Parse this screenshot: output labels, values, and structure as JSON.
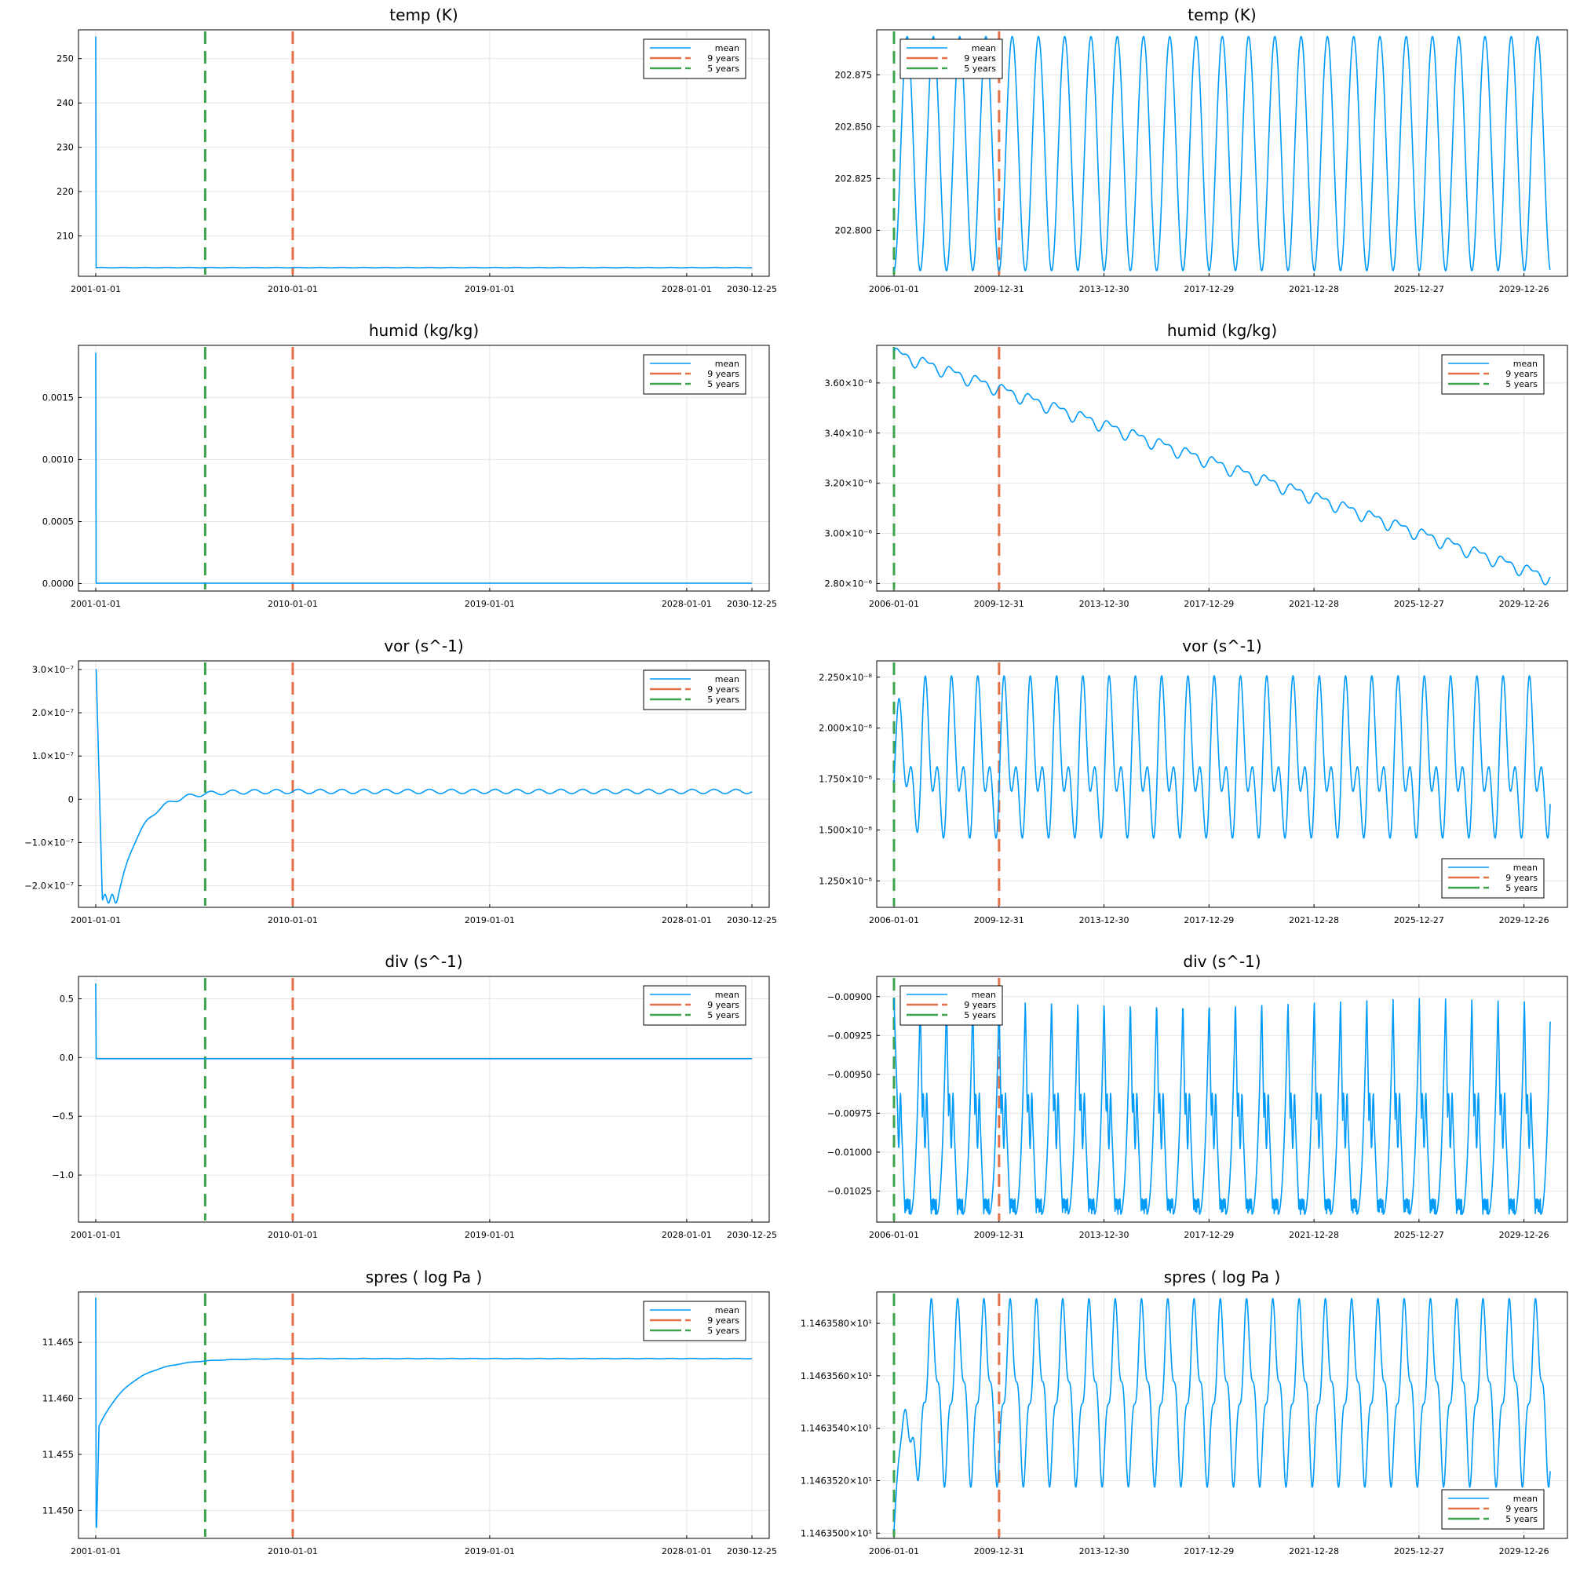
{
  "figure": {
    "legend_entries": [
      "mean",
      "9 years",
      "5 years"
    ],
    "colors": {
      "mean": "#009af9",
      "nine_years": "#e26f46",
      "five_years": "#3da44d",
      "grid": "#e5e5e5",
      "axis": "#000000"
    }
  },
  "chart_data": [
    {
      "type": "line",
      "title": "temp (K)",
      "panel": "full-left",
      "legend_position": "top-right",
      "x_ticks": [
        "2001-01-01",
        "2010-01-01",
        "2019-01-01",
        "2028-01-01",
        "2030-12-25"
      ],
      "x_range": [
        "2001-01-01",
        "2030-12-25"
      ],
      "y_ticks": [
        "250",
        "240",
        "230",
        "220",
        "210"
      ],
      "y_tick_values": [
        250,
        240,
        230,
        220,
        210
      ],
      "ylim": [
        200.9,
        256.5
      ],
      "series": [
        {
          "name": "mean",
          "shape": "spike",
          "start_value": 255.0,
          "level": 202.85,
          "amplitude": 0.05,
          "period_years": 1
        }
      ],
      "vlines": [
        {
          "name": "9 years",
          "x": "2010-01-01"
        },
        {
          "name": "5 years",
          "x": "2006-01-01"
        }
      ]
    },
    {
      "type": "line",
      "title": "temp (K)",
      "panel": "tail-right",
      "legend_position": "top-left",
      "x_ticks": [
        "2006-01-01",
        "2009-12-31",
        "2013-12-30",
        "2017-12-29",
        "2021-12-28",
        "2025-12-27",
        "2029-12-26"
      ],
      "x_range": [
        "2006-01-01",
        "2030-12-25"
      ],
      "y_ticks": [
        "202.875",
        "202.850",
        "202.825",
        "202.800"
      ],
      "y_tick_values": [
        202.875,
        202.85,
        202.825,
        202.8
      ],
      "ylim": [
        202.7778,
        202.8967
      ],
      "series": [
        {
          "name": "mean",
          "shape": "sine",
          "min": 202.7805,
          "max": 202.8935,
          "period_years": 1,
          "start_phase": "min",
          "end": 202.782
        }
      ],
      "vlines": [
        {
          "name": "9 years",
          "x": "2010-01-01"
        },
        {
          "name": "5 years",
          "x": "2006-01-01"
        }
      ]
    },
    {
      "type": "line",
      "title": "humid (kg/kg)",
      "panel": "full-left",
      "legend_position": "top-right",
      "x_ticks": [
        "2001-01-01",
        "2010-01-01",
        "2019-01-01",
        "2028-01-01",
        "2030-12-25"
      ],
      "x_range": [
        "2001-01-01",
        "2030-12-25"
      ],
      "y_ticks": [
        "0.0015",
        "0.0010",
        "0.0005",
        "0.0000"
      ],
      "y_tick_values": [
        0.0015,
        0.001,
        0.0005,
        0
      ],
      "ylim": [
        -6e-05,
        0.00192
      ],
      "series": [
        {
          "name": "mean",
          "shape": "spike",
          "start_value": 0.00186,
          "level": 3.2e-06,
          "amplitude": 0,
          "period_years": 1
        }
      ],
      "vlines": [
        {
          "name": "9 years",
          "x": "2010-01-01"
        },
        {
          "name": "5 years",
          "x": "2006-01-01"
        }
      ]
    },
    {
      "type": "line",
      "title": "humid (kg/kg)",
      "panel": "tail-right",
      "legend_position": "top-right",
      "x_ticks": [
        "2006-01-01",
        "2009-12-31",
        "2013-12-30",
        "2017-12-29",
        "2021-12-28",
        "2025-12-27",
        "2029-12-26"
      ],
      "x_range": [
        "2006-01-01",
        "2030-12-25"
      ],
      "y_ticks": [
        "3.60×10⁻⁶",
        "3.40×10⁻⁶",
        "3.20×10⁻⁶",
        "3.00×10⁻⁶",
        "2.80×10⁻⁶"
      ],
      "y_tick_values": [
        3.6e-06,
        3.4e-06,
        3.2e-06,
        3e-06,
        2.8e-06
      ],
      "ylim": [
        2.77e-06,
        3.75e-06
      ],
      "series": [
        {
          "name": "mean",
          "shape": "trend",
          "start": 3.72e-06,
          "end": 2.82e-06,
          "amplitude": 2e-08,
          "period_years": 1
        }
      ],
      "vlines": [
        {
          "name": "9 years",
          "x": "2010-01-01"
        },
        {
          "name": "5 years",
          "x": "2006-01-01"
        }
      ]
    },
    {
      "type": "line",
      "title": "vor (s^-1)",
      "panel": "full-left",
      "legend_position": "top-right",
      "x_ticks": [
        "2001-01-01",
        "2010-01-01",
        "2019-01-01",
        "2028-01-01",
        "2030-12-25"
      ],
      "x_range": [
        "2001-01-01",
        "2030-12-25"
      ],
      "y_ticks": [
        "3.0×10⁻⁷",
        "2.0×10⁻⁷",
        "1.0×10⁻⁷",
        "0",
        "−1.0×10⁻⁷",
        "−2.0×10⁻⁷"
      ],
      "y_tick_values": [
        3e-07,
        2e-07,
        1e-07,
        0,
        -1e-07,
        -2e-07
      ],
      "ylim": [
        -2.5e-07,
        3.2e-07
      ],
      "series": [
        {
          "name": "mean",
          "shape": "recovery",
          "start_value": 3e-07,
          "trough": -2.3e-07,
          "level": 1.8e-08,
          "amplitude": 5e-09,
          "period_years": 1
        }
      ],
      "vlines": [
        {
          "name": "9 years",
          "x": "2010-01-01"
        },
        {
          "name": "5 years",
          "x": "2006-01-01"
        }
      ]
    },
    {
      "type": "line",
      "title": "vor (s^-1)",
      "panel": "tail-right",
      "legend_position": "bottom-right",
      "x_ticks": [
        "2006-01-01",
        "2009-12-31",
        "2013-12-30",
        "2017-12-29",
        "2021-12-28",
        "2025-12-27",
        "2029-12-26"
      ],
      "x_range": [
        "2006-01-01",
        "2030-12-25"
      ],
      "y_ticks": [
        "2.250×10⁻⁸",
        "2.000×10⁻⁸",
        "1.750×10⁻⁸",
        "1.500×10⁻⁸",
        "1.250×10⁻⁸"
      ],
      "y_tick_values": [
        2.25e-08,
        2e-08,
        1.75e-08,
        1.5e-08,
        1.25e-08
      ],
      "ylim": [
        1.12e-08,
        2.33e-08
      ],
      "series": [
        {
          "name": "mean",
          "shape": "double-cycle",
          "min": 1.35e-08,
          "max": 2.28e-08,
          "mid": 1.85e-08,
          "period_years": 1
        }
      ],
      "vlines": [
        {
          "name": "9 years",
          "x": "2010-01-01"
        },
        {
          "name": "5 years",
          "x": "2006-01-01"
        }
      ]
    },
    {
      "type": "line",
      "title": "div (s^-1)",
      "panel": "full-left",
      "legend_position": "top-right",
      "x_ticks": [
        "2001-01-01",
        "2010-01-01",
        "2019-01-01",
        "2028-01-01",
        "2030-12-25"
      ],
      "x_range": [
        "2001-01-01",
        "2030-12-25"
      ],
      "y_ticks": [
        "0.5",
        "0.0",
        "−0.5",
        "−1.0"
      ],
      "y_tick_values": [
        0.5,
        0,
        -0.5,
        -1.0
      ],
      "ylim": [
        -1.4,
        0.69
      ],
      "series": [
        {
          "name": "mean",
          "shape": "spike-range",
          "high": 0.63,
          "low": -1.35,
          "level": -0.0097,
          "amplitude": 0,
          "period_years": 1
        }
      ],
      "vlines": [
        {
          "name": "9 years",
          "x": "2010-01-01"
        },
        {
          "name": "5 years",
          "x": "2006-01-01"
        }
      ]
    },
    {
      "type": "line",
      "title": "div (s^-1)",
      "panel": "tail-right",
      "legend_position": "top-left",
      "x_ticks": [
        "2006-01-01",
        "2009-12-31",
        "2013-12-30",
        "2017-12-29",
        "2021-12-28",
        "2025-12-27",
        "2029-12-26"
      ],
      "x_range": [
        "2006-01-01",
        "2030-12-25"
      ],
      "y_ticks": [
        "−0.00900",
        "−0.00925",
        "−0.00950",
        "−0.00975",
        "−0.01000",
        "−0.01025"
      ],
      "y_tick_values": [
        -0.009,
        -0.00925,
        -0.0095,
        -0.00975,
        -0.01,
        -0.01025
      ],
      "ylim": [
        -0.01045,
        -0.00887
      ],
      "series": [
        {
          "name": "mean",
          "shape": "spiky-cycle",
          "min": -0.0104,
          "max": -0.00901,
          "mid": -0.0098,
          "period_years": 1
        }
      ],
      "vlines": [
        {
          "name": "9 years",
          "x": "2010-01-01"
        },
        {
          "name": "5 years",
          "x": "2006-01-01"
        }
      ]
    },
    {
      "type": "line",
      "title": "spres ( log Pa )",
      "panel": "full-left",
      "legend_position": "top-right",
      "x_ticks": [
        "2001-01-01",
        "2010-01-01",
        "2019-01-01",
        "2028-01-01",
        "2030-12-25"
      ],
      "x_range": [
        "2001-01-01",
        "2030-12-25"
      ],
      "y_ticks": [
        "11.465",
        "11.460",
        "11.455",
        "11.450"
      ],
      "y_tick_values": [
        11.465,
        11.46,
        11.455,
        11.45
      ],
      "ylim": [
        11.4475,
        11.4695
      ],
      "series": [
        {
          "name": "mean",
          "shape": "saturation",
          "start_value": 11.469,
          "low": 11.4485,
          "knee": 11.4575,
          "level": 11.46355,
          "amplitude": 2e-05,
          "period_years": 1
        }
      ],
      "vlines": [
        {
          "name": "9 years",
          "x": "2010-01-01"
        },
        {
          "name": "5 years",
          "x": "2006-01-01"
        }
      ]
    },
    {
      "type": "line",
      "title": "spres ( log Pa )",
      "panel": "tail-right",
      "legend_position": "bottom-right",
      "x_ticks": [
        "2006-01-01",
        "2009-12-31",
        "2013-12-30",
        "2017-12-29",
        "2021-12-28",
        "2025-12-27",
        "2029-12-26"
      ],
      "x_range": [
        "2006-01-01",
        "2030-12-25"
      ],
      "y_ticks": [
        "1.1463580×10¹",
        "1.1463560×10¹",
        "1.1463540×10¹",
        "1.1463520×10¹",
        "1.1463500×10¹"
      ],
      "y_tick_values": [
        11.46358,
        11.46356,
        11.46354,
        11.46352,
        11.4635
      ],
      "ylim": [
        11.463498,
        11.463592
      ],
      "series": [
        {
          "name": "mean",
          "shape": "settle-cycle",
          "min": 11.463519,
          "max": 11.463588,
          "first_min": 11.463501,
          "period_years": 1
        }
      ],
      "vlines": [
        {
          "name": "9 years",
          "x": "2010-01-01"
        },
        {
          "name": "5 years",
          "x": "2006-01-01"
        }
      ]
    }
  ]
}
